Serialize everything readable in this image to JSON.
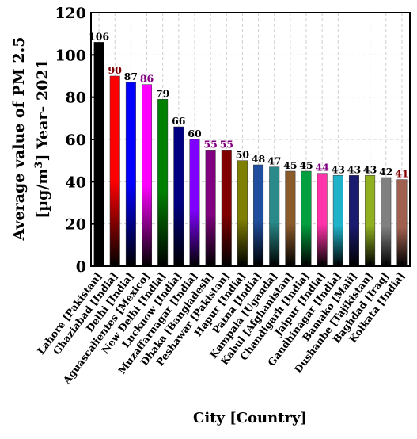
{
  "chart_data": {
    "type": "bar",
    "categories": [
      "Lahore [Pakistan]",
      "Ghaziabad [India]",
      "Delhi [India]",
      "Aguascalientes [Mexico]",
      "New Delhi [India]",
      "Lucknow [India]",
      "Muzaffarnagar [India]",
      "Dhaka [Bangladesh]",
      "Peshawar [Pakistan]",
      "Hapur [India]",
      "Patna [India]",
      "Kampala [Uganda]",
      "Kabul [Afghanistan]",
      "Chandigarh [India]",
      "Jaipur [India]",
      "Gandhinagar [India]",
      "Bamako [Mali]",
      "Dushanbe [Tajikistan]",
      "Baghdad [Iraq]",
      "Kolkata [India]"
    ],
    "values": [
      106,
      90,
      87,
      86,
      79,
      66,
      60,
      55,
      55,
      50,
      48,
      47,
      45,
      45,
      44,
      43,
      43,
      43,
      42,
      41
    ],
    "value_labels": [
      "106",
      "90",
      "87",
      "86",
      "79",
      "66",
      "60",
      "55",
      "55",
      "50",
      "48",
      "47",
      "45",
      "45",
      "44",
      "43",
      "43",
      "43",
      "42",
      "41"
    ],
    "colors": [
      "#000000",
      "#ff0000",
      "#0000ff",
      "#ff00ff",
      "#008000",
      "#000080",
      "#8000ff",
      "#800080",
      "#800000",
      "#808000",
      "#1f4e9e",
      "#2a8a8a",
      "#8b5a2b",
      "#00a040",
      "#ff33aa",
      "#20b2c8",
      "#1a1a6e",
      "#90b020",
      "#808080",
      "#a06050"
    ],
    "label_colors": [
      "#000000",
      "#800000",
      "#000000",
      "#800080",
      "#000000",
      "#000000",
      "#000000",
      "#800080",
      "#800080",
      "#000000",
      "#000000",
      "#000000",
      "#000000",
      "#000000",
      "#800080",
      "#000000",
      "#000000",
      "#000000",
      "#000000",
      "#800000"
    ],
    "ylim": [
      0,
      120
    ],
    "yticks": [
      0,
      20,
      40,
      60,
      80,
      100,
      120
    ],
    "ytick_labels": [
      "0",
      "20",
      "40",
      "60",
      "80",
      "100",
      "120"
    ],
    "ylabel_line1": "Average value of PM 2.5",
    "ylabel_line2_pre": "[µg/m",
    "ylabel_line2_sup": "3",
    "ylabel_line2_post": "] Year- 2021",
    "xlabel": "City [Country]",
    "grid": true,
    "legend": false
  }
}
